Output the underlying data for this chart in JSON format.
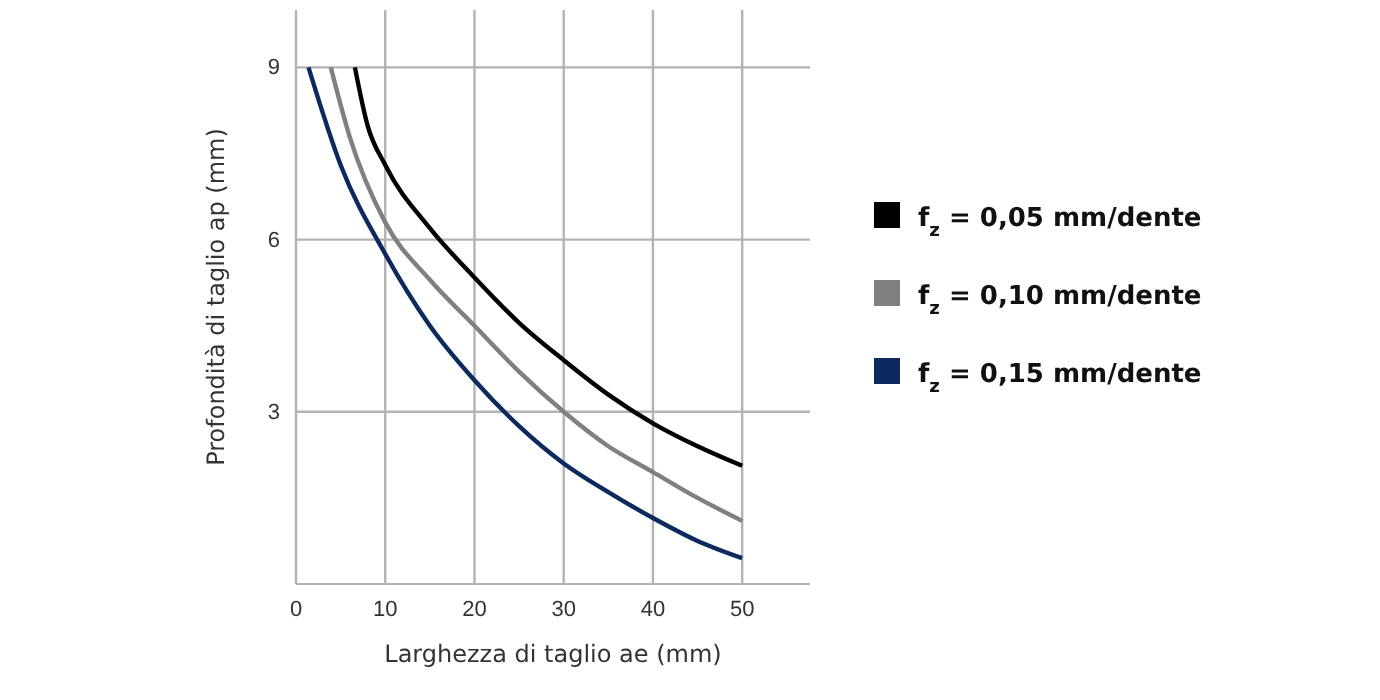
{
  "chart_data": {
    "type": "line",
    "xlabel": "Larghezza di taglio ae (mm)",
    "ylabel": "Profondità di taglio ap (mm)",
    "xlim": [
      0,
      57.6
    ],
    "ylim": [
      0,
      10
    ],
    "xticks": [
      0,
      10,
      20,
      30,
      40,
      50
    ],
    "yticks": [
      3,
      6,
      9
    ],
    "grid": true,
    "legend": "right",
    "marker": "none",
    "line_style": "solid",
    "series": [
      {
        "name": "f$_{z}$ = 0,05 mm/dente",
        "color": "#000000",
        "x": [
          6.6,
          8,
          10,
          15,
          20,
          25,
          30,
          35,
          40,
          45,
          50
        ],
        "values": [
          9,
          8.0,
          7.3,
          6.2,
          5.34,
          4.55,
          3.9,
          3.3,
          2.8,
          2.4,
          2.06
        ]
      },
      {
        "name": "f$_{z}$ = 0,10 mm/dente",
        "color": "#808080",
        "x": [
          3.9,
          6,
          10,
          15,
          20,
          25,
          30,
          35,
          40,
          45,
          50
        ],
        "values": [
          9,
          7.8,
          6.3,
          5.3,
          4.5,
          3.7,
          3.0,
          2.4,
          1.95,
          1.5,
          1.1
        ]
      },
      {
        "name": "f$_{z}$ = 0,15 mm/dente",
        "color": "#0d2a5e",
        "x": [
          1.4,
          5,
          10,
          15,
          20,
          25,
          30,
          35,
          40,
          45,
          50
        ],
        "values": [
          9,
          7.3,
          5.75,
          4.5,
          3.55,
          2.75,
          2.1,
          1.6,
          1.15,
          0.75,
          0.45
        ]
      }
    ]
  }
}
